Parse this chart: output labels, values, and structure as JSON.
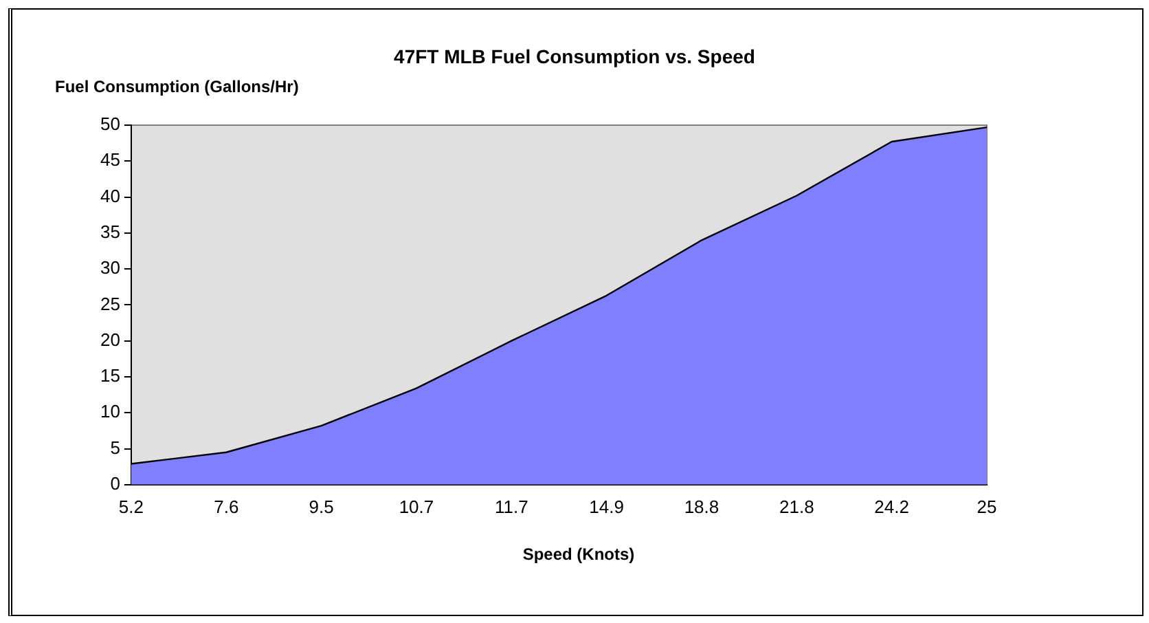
{
  "chart_data": {
    "type": "area",
    "title": "47FT MLB Fuel Consumption vs. Speed",
    "xlabel": "Speed (Knots)",
    "ylabel": "Fuel Consumption (Gallons/Hr)",
    "categories": [
      "5.2",
      "7.6",
      "9.5",
      "10.7",
      "11.7",
      "14.9",
      "18.8",
      "21.8",
      "24.2",
      "25"
    ],
    "series": [
      {
        "color": "#8080ff",
        "values": [
          2.9,
          4.5,
          8.2,
          13.4,
          20.0,
          26.3,
          34.0,
          40.2,
          47.7,
          49.7
        ]
      }
    ],
    "ylim": [
      0,
      50
    ],
    "yticks": [
      0,
      5,
      10,
      15,
      20,
      25,
      30,
      35,
      40,
      45,
      50
    ],
    "grid": false,
    "legend": false
  }
}
